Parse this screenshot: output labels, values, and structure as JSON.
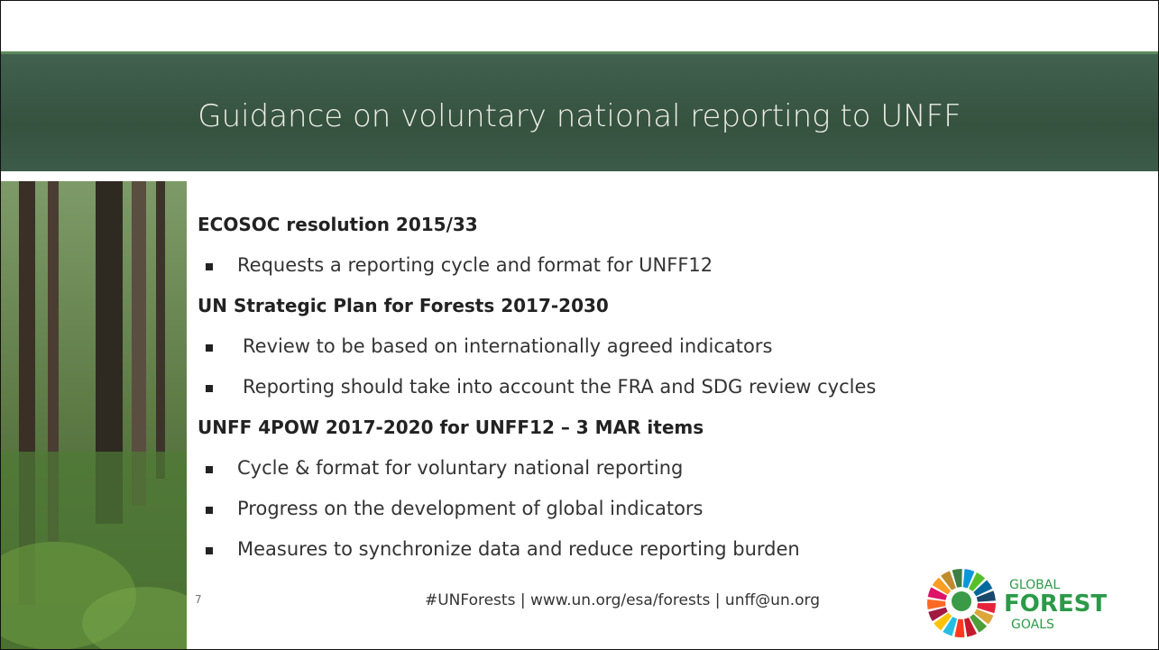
{
  "header": {
    "title": "Guidance on voluntary national reporting to UNFF"
  },
  "sections": [
    {
      "heading": "ECOSOC resolution 2015/33",
      "bullets": [
        "Requests a reporting cycle and format for UNFF12"
      ]
    },
    {
      "heading": "UN Strategic Plan for Forests 2017-2030",
      "bullets": [
        "Review to be based on internationally agreed indicators",
        "Reporting should take into account the FRA and SDG review  cycles"
      ]
    },
    {
      "heading": "UNFF 4POW 2017-2020 for UNFF12 – 3 MAR items",
      "bullets": [
        "Cycle & format for voluntary national reporting",
        "Progress on the development of global indicators",
        "Measures to synchronize data and reduce reporting burden"
      ]
    }
  ],
  "footer": {
    "page_fragment": "7",
    "contact": "#UNForests | www.un.org/esa/forests | unff@un.org"
  },
  "logo": {
    "line1": "GLOBAL",
    "line2": "FOREST",
    "line3": "GOALS"
  }
}
